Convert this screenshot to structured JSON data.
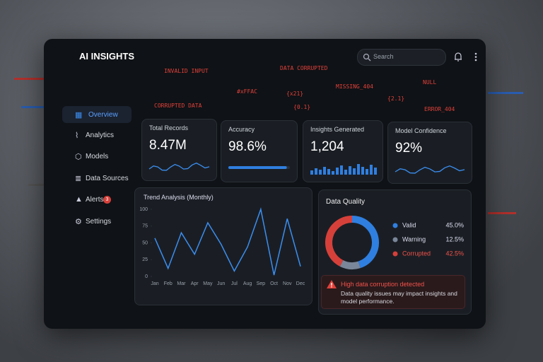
{
  "header": {
    "title": "AI INSIGHTS",
    "search_placeholder": "Search"
  },
  "glitch_texts": [
    "INVALID INPUT",
    "DATA CORRUPTED",
    "NULL",
    "#xFFAC",
    "{x21}",
    "MISSING_404",
    "CORRUPTED DATA",
    "{0.1}",
    "{2.1}",
    "ERROR_404"
  ],
  "sidebar": {
    "items": [
      "Overview",
      "Analytics",
      "Models",
      "Data Sources",
      "Alerts",
      "Settings"
    ],
    "alerts_badge": "3"
  },
  "kpis": [
    {
      "label": "Total Records",
      "value": "8.47M"
    },
    {
      "label": "Accuracy",
      "value": "98.6%"
    },
    {
      "label": "Insights Generated",
      "value": "1,204"
    },
    {
      "label": "Model Confidence",
      "value": "92%"
    }
  ],
  "chart_data": [
    {
      "type": "line",
      "title": "Trend Analysis (Monthly)",
      "color": "#3b8ef0",
      "categories": [
        "Jan",
        "Feb",
        "Mar",
        "Apr",
        "May",
        "Jun",
        "Jul",
        "Aug",
        "Sep",
        "Oct",
        "Nov",
        "Dec"
      ],
      "values": [
        57,
        12,
        65,
        33,
        80,
        48,
        8,
        44,
        100,
        2,
        86,
        15
      ],
      "ylim": [
        0,
        100
      ],
      "yticks": [
        0,
        25,
        50,
        75,
        100
      ],
      "grid": false
    },
    {
      "type": "pie",
      "title": "Data Quality",
      "categories": [
        "Valid",
        "Warning",
        "Corrupted"
      ],
      "values": [
        45.0,
        12.5,
        42.5
      ],
      "value_labels": [
        "45.0%",
        "12.5%",
        "42.5%"
      ],
      "colors": [
        "#2f7fe0",
        "#7a8699",
        "#d6403a"
      ]
    }
  ],
  "alert": {
    "title": "High data corruption detected",
    "message": "Data quality issues may impact insights and model performance."
  }
}
